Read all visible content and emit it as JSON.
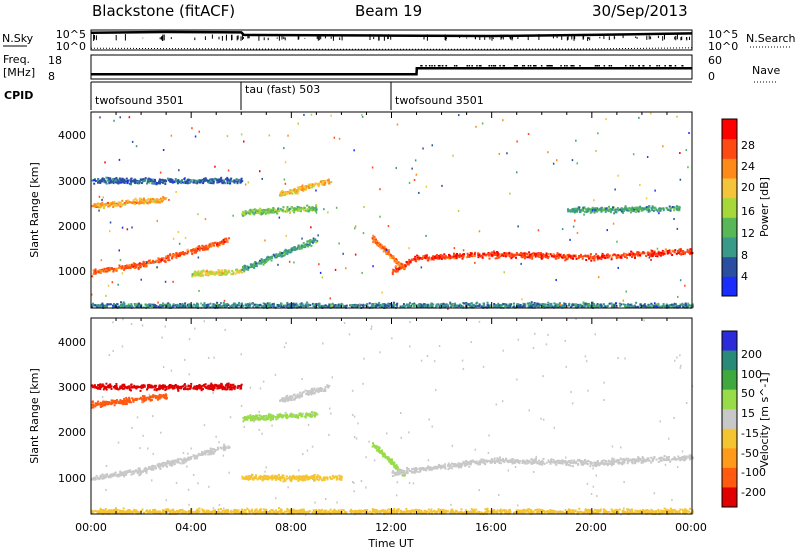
{
  "header": {
    "title": "Blackstone (fitACF)",
    "beam": "Beam 19",
    "date": "30/Sep/2013"
  },
  "nsky_panel": {
    "left_label": "N.Sky",
    "right_label": "N.Search",
    "left_ticks": [
      "10^5",
      "10^0"
    ],
    "right_ticks": [
      "10^5",
      "10^0"
    ]
  },
  "freq_panel": {
    "left_label": [
      "Freq.",
      "[MHz]"
    ],
    "right_label": "Nave",
    "left_ticks": [
      "18",
      "8"
    ],
    "right_ticks": [
      "60",
      "0"
    ]
  },
  "cpid_panel": {
    "label": "CPID",
    "modes": [
      {
        "label": "twofsound 3501",
        "start_hour": 0,
        "end_hour": 6
      },
      {
        "label": "tau (fast) 503",
        "start_hour": 6,
        "end_hour": 12
      },
      {
        "label": "twofsound 3501",
        "start_hour": 12,
        "end_hour": 24
      }
    ]
  },
  "x_axis": {
    "label": "Time UT",
    "range_hours": [
      0,
      24
    ],
    "ticks": [
      "00:00",
      "04:00",
      "08:00",
      "12:00",
      "16:00",
      "20:00",
      "00:00"
    ]
  },
  "power_panel": {
    "ylabel": "Slant Range [km]",
    "yticks": [
      "1000",
      "2000",
      "3000",
      "4000"
    ],
    "colorbar_label": "Power [dB]",
    "colorbar_ticks": [
      "4",
      "8",
      "12",
      "16",
      "20",
      "24",
      "28"
    ]
  },
  "velocity_panel": {
    "ylabel": "Slant Range [km]",
    "yticks": [
      "1000",
      "2000",
      "3000",
      "4000"
    ],
    "colorbar_label": "Velocity [m s^-1]",
    "colorbar_ticks": [
      "200",
      "100",
      "50",
      "15",
      "-15",
      "-50",
      "-100",
      "-200"
    ]
  },
  "colors": {
    "power_scale": [
      "#1a2dff",
      "#2a4fa0",
      "#3a9a8a",
      "#58b858",
      "#a6d83a",
      "#f4c43a",
      "#ff8a1a",
      "#ff4a14",
      "#ff0000"
    ],
    "velocity_scale": [
      "#2b2bd9",
      "#2a8a78",
      "#3fa83f",
      "#98dc4a",
      "#c8c8c8",
      "#f5c431",
      "#ff9a1a",
      "#ff5a10",
      "#e00000"
    ]
  },
  "chart_data": [
    {
      "type": "line",
      "title": "N.Sky / N.Search",
      "x_unit": "hours UT",
      "xlim": [
        0,
        24
      ],
      "series": [
        {
          "x": [
            0,
            3,
            6,
            6.1,
            9,
            12,
            16,
            20,
            24
          ],
          "values": [
            4.8,
            5.0,
            4.9,
            4.2,
            4.1,
            4.0,
            3.9,
            4.2,
            4.6
          ]
        },
        {
          "x": [
            0,
            3,
            6,
            9,
            12,
            16,
            20,
            24
          ],
          "values": [
            0.5,
            0.4,
            0.3,
            0.2,
            0.2,
            0.2,
            0.3,
            0.6
          ]
        }
      ]
    },
    {
      "type": "line",
      "title": "Freq. / Nave",
      "x_unit": "hours UT",
      "xlim": [
        0,
        24
      ],
      "ylim": [
        8,
        18
      ],
      "series": [
        {
          "x": [
            0,
            6,
            12,
            13,
            13.01,
            24
          ],
          "values": [
            10.0,
            10.0,
            10.0,
            10.0,
            12.5,
            12.5
          ]
        }
      ]
    },
    {
      "type": "heatmap",
      "title": "Power [dB]",
      "xlim": [
        0,
        24
      ],
      "ylim": [
        180,
        4500
      ],
      "y_unit": "km",
      "z_unit": "dB",
      "features": [
        {
          "x": [
            0,
            2,
            4,
            5.5
          ],
          "y": [
            980,
            1150,
            1450,
            1700
          ],
          "z": 26
        },
        {
          "x": [
            4,
            6
          ],
          "y": [
            950,
            1000
          ],
          "z": 18
        },
        {
          "x": [
            6,
            9
          ],
          "y": [
            1050,
            1700
          ],
          "z": 10
        },
        {
          "x": [
            6,
            9
          ],
          "y": [
            2300,
            2400
          ],
          "z": 14
        },
        {
          "x": [
            7.5,
            9.5
          ],
          "y": [
            2700,
            3000
          ],
          "z": 20
        },
        {
          "x": [
            11.2,
            12.5
          ],
          "y": [
            1750,
            1050
          ],
          "z": 24
        },
        {
          "x": [
            12,
            13,
            16,
            20,
            24
          ],
          "y": [
            1000,
            1300,
            1380,
            1320,
            1450
          ],
          "z": 28
        },
        {
          "x": [
            0,
            6
          ],
          "y": [
            3000,
            3000
          ],
          "z": 6
        },
        {
          "x": [
            0,
            3
          ],
          "y": [
            2450,
            2600
          ],
          "z": 22
        },
        {
          "x": [
            19,
            23.5
          ],
          "y": [
            2350,
            2400
          ],
          "z": 10
        },
        {
          "x": [
            0,
            24
          ],
          "y": [
            250,
            250
          ],
          "z": 8
        }
      ]
    },
    {
      "type": "heatmap",
      "title": "Velocity [m s^-1]",
      "xlim": [
        0,
        24
      ],
      "ylim": [
        180,
        4500
      ],
      "y_unit": "km",
      "z_unit": "m/s",
      "features": [
        {
          "x": [
            0,
            2,
            4,
            5.5
          ],
          "y": [
            980,
            1150,
            1450,
            1700
          ],
          "z": -20
        },
        {
          "x": [
            0,
            3
          ],
          "y": [
            2600,
            2800
          ],
          "z": -150
        },
        {
          "x": [
            0,
            6
          ],
          "y": [
            3000,
            3000
          ],
          "z": -200
        },
        {
          "x": [
            6,
            9
          ],
          "y": [
            2300,
            2400
          ],
          "z": 30
        },
        {
          "x": [
            7.5,
            9.5
          ],
          "y": [
            2700,
            3000
          ],
          "z": 0
        },
        {
          "x": [
            6,
            10
          ],
          "y": [
            1000,
            1000
          ],
          "z": -40
        },
        {
          "x": [
            11.2,
            12.5
          ],
          "y": [
            1750,
            1050
          ],
          "z": 40
        },
        {
          "x": [
            12,
            16,
            20,
            24
          ],
          "y": [
            1100,
            1380,
            1320,
            1450
          ],
          "z": 0
        },
        {
          "x": [
            0,
            24
          ],
          "y": [
            250,
            250
          ],
          "z": -40
        }
      ]
    }
  ]
}
